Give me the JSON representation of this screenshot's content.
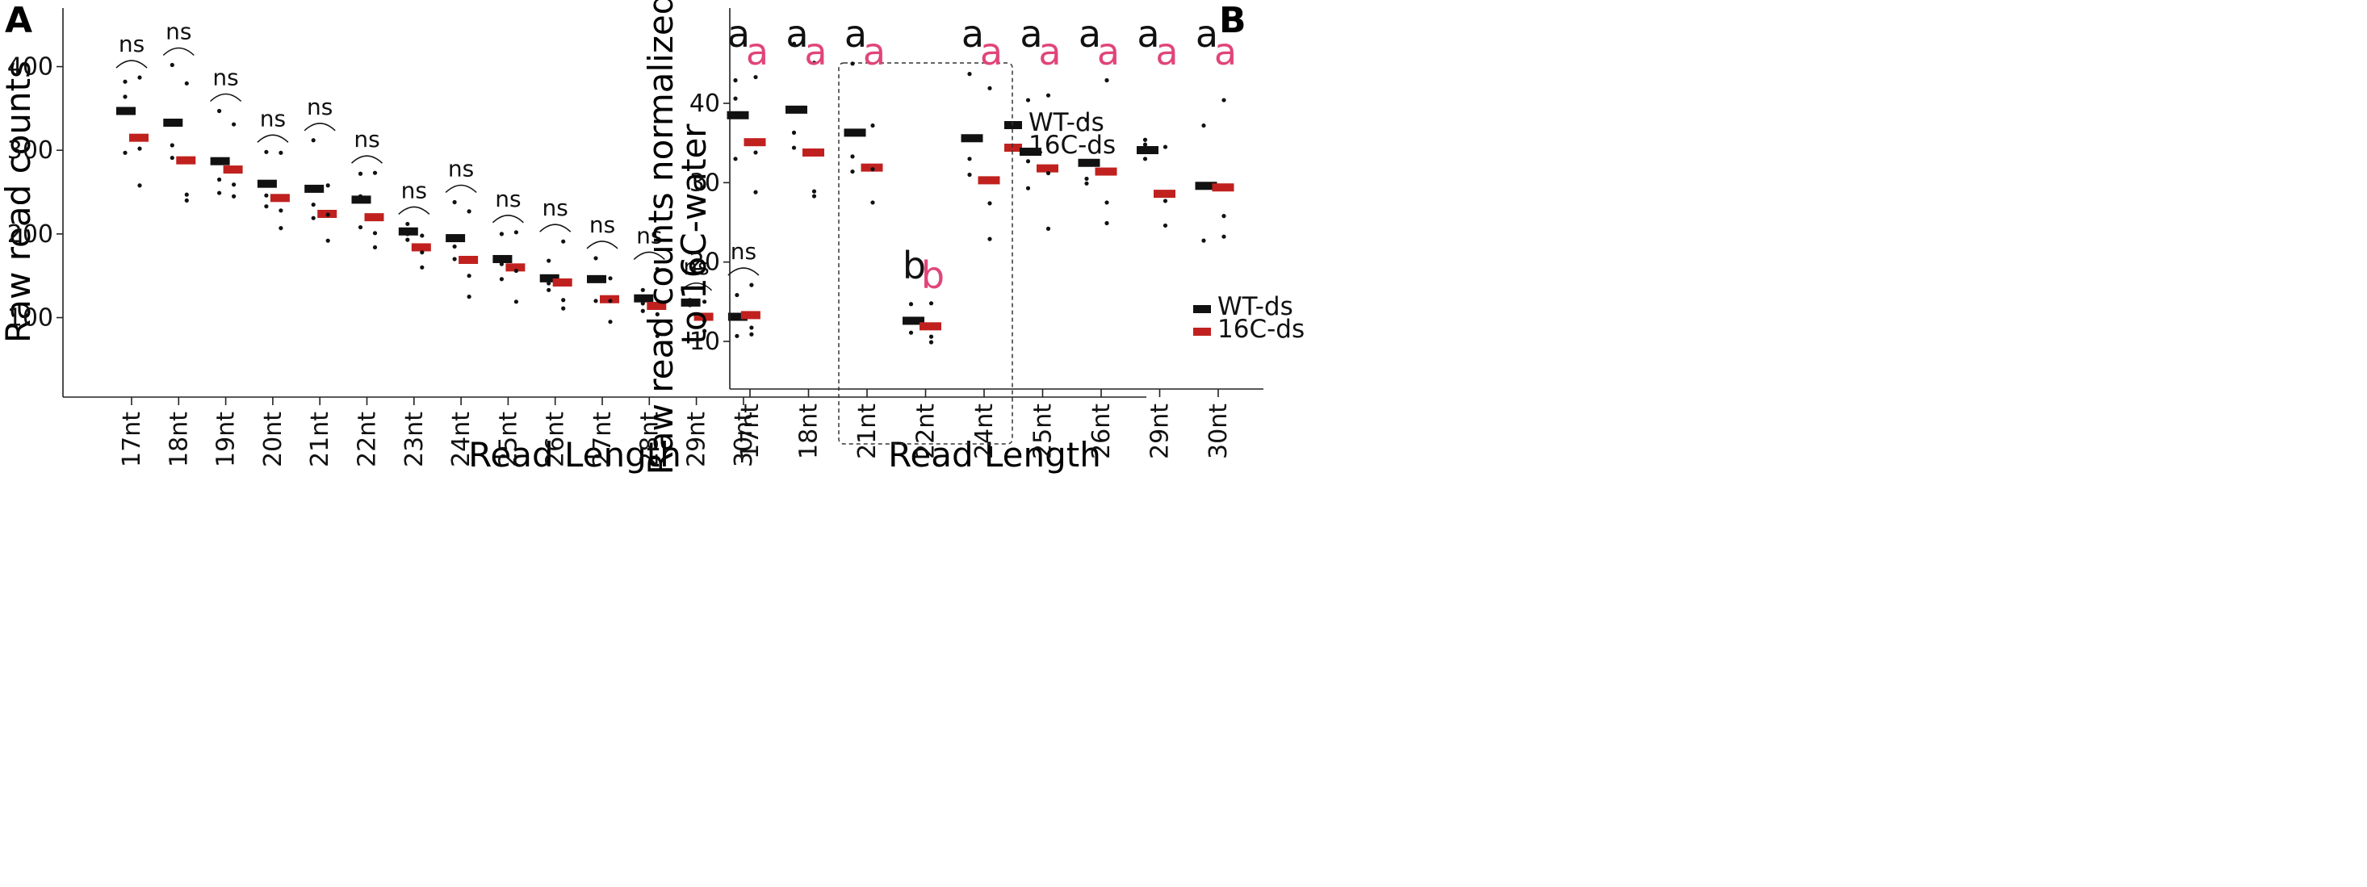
{
  "colors": {
    "wt": "#111111",
    "c16": "#c0211f",
    "letter_c16": "#e0457a",
    "axis": "#222222"
  },
  "chart_data": [
    {
      "type": "scatter",
      "panel": "A",
      "xlabel": "Read Length",
      "ylabel": "Raw read counts",
      "ylim": [
        5,
        470
      ],
      "yticks": [
        100,
        200,
        300,
        400
      ],
      "categories": [
        "17nt",
        "18nt",
        "19nt",
        "20nt",
        "21nt",
        "22nt",
        "23nt",
        "24nt",
        "25nt",
        "26nt",
        "27nt",
        "28nt",
        "29nt",
        "30nt"
      ],
      "legend": {
        "position": "right",
        "entries": [
          "WT-ds",
          "16C-ds"
        ]
      },
      "annotation": "ns",
      "series": [
        {
          "name": "WT-ds",
          "means": [
            347,
            333,
            287,
            260,
            254,
            241,
            203,
            195,
            170,
            147,
            146,
            123,
            118,
            101
          ],
          "points": [
            [
              382,
              364,
              297
            ],
            [
              402,
              306,
              291
            ],
            [
              347,
              265,
              249
            ],
            [
              298,
              246,
              233
            ],
            [
              312,
              235,
              219
            ],
            [
              272,
              245,
              208
            ],
            [
              212,
              200,
              193
            ],
            [
              238,
              185,
              170
            ],
            [
              200,
              164,
              146
            ],
            [
              168,
              141,
              133
            ],
            [
              171,
              147,
              120
            ],
            [
              133,
              117,
              108
            ],
            [
              121,
              118,
              115
            ],
            [
              127,
              101,
              78
            ]
          ]
        },
        {
          "name": "16C-ds",
          "means": [
            315,
            288,
            277,
            243,
            224,
            220,
            184,
            169,
            160,
            142,
            122,
            114,
            101,
            103
          ],
          "points": [
            [
              387,
              302,
              258
            ],
            [
              380,
              247,
              240
            ],
            [
              331,
              259,
              245
            ],
            [
              297,
              228,
              207
            ],
            [
              258,
              223,
              192
            ],
            [
              273,
              201,
              184
            ],
            [
              198,
              178,
              160
            ],
            [
              227,
              150,
              125
            ],
            [
              202,
              156,
              119
            ],
            [
              191,
              121,
              111
            ],
            [
              147,
              120,
              95
            ],
            [
              158,
              104,
              78
            ],
            [
              119,
              96,
              84
            ],
            [
              139,
              88,
              80
            ]
          ]
        }
      ]
    },
    {
      "type": "scatter",
      "panel": "B",
      "xlabel": "Read Length",
      "ylabel": "Raw read counts normalized to 16C-water",
      "ylabel_lines": [
        "Raw read counts normalized",
        "to 16C-water"
      ],
      "ylim": [
        4,
        52
      ],
      "yticks": [
        10,
        20,
        30,
        40
      ],
      "categories": [
        "17nt",
        "18nt",
        "21nt",
        "22nt",
        "24nt",
        "25nt",
        "26nt",
        "29nt",
        "30nt"
      ],
      "legend": {
        "position": "right",
        "entries": [
          "WT-ds",
          "16C-ds"
        ]
      },
      "highlight_box": [
        "21nt",
        "24nt"
      ],
      "group_letters": {
        "WT-ds": [
          "a",
          "a",
          "a",
          "b",
          "a",
          "a",
          "a",
          "a",
          "a"
        ],
        "16C-ds": [
          "a",
          "a",
          "a",
          "b",
          "a",
          "a",
          "a",
          "a",
          "a"
        ]
      },
      "series": [
        {
          "name": "WT-ds",
          "means": [
            38.5,
            39.2,
            36.3,
            12.6,
            35.6,
            33.9,
            32.5,
            34.1,
            29.6
          ],
          "points": [
            [
              42.9,
              40.6,
              33.0
            ],
            [
              47.5,
              36.3,
              34.4
            ],
            [
              45.0,
              33.3,
              31.4
            ],
            [
              14.7,
              12.7,
              11.1
            ],
            [
              43.7,
              33.0,
              31.0
            ],
            [
              40.4,
              32.7,
              29.3
            ],
            [
              37.9,
              30.5,
              29.9
            ],
            [
              35.4,
              34.8,
              33.0
            ],
            [
              37.2,
              29.6,
              22.7
            ]
          ]
        },
        {
          "name": "16C-ds",
          "means": [
            35.1,
            33.8,
            31.9,
            11.9,
            30.3,
            31.8,
            31.4,
            28.6,
            29.4
          ],
          "points": [
            [
              43.3,
              33.8,
              28.8
            ],
            [
              45.1,
              28.9,
              28.3
            ],
            [
              37.2,
              31.7,
              27.5
            ],
            [
              14.8,
              10.6,
              9.9
            ],
            [
              41.9,
              27.4,
              22.9
            ],
            [
              41.0,
              31.2,
              24.2
            ],
            [
              42.9,
              27.5,
              24.9
            ],
            [
              34.5,
              27.7,
              24.6
            ],
            [
              40.4,
              25.8,
              23.2
            ]
          ]
        }
      ]
    }
  ]
}
